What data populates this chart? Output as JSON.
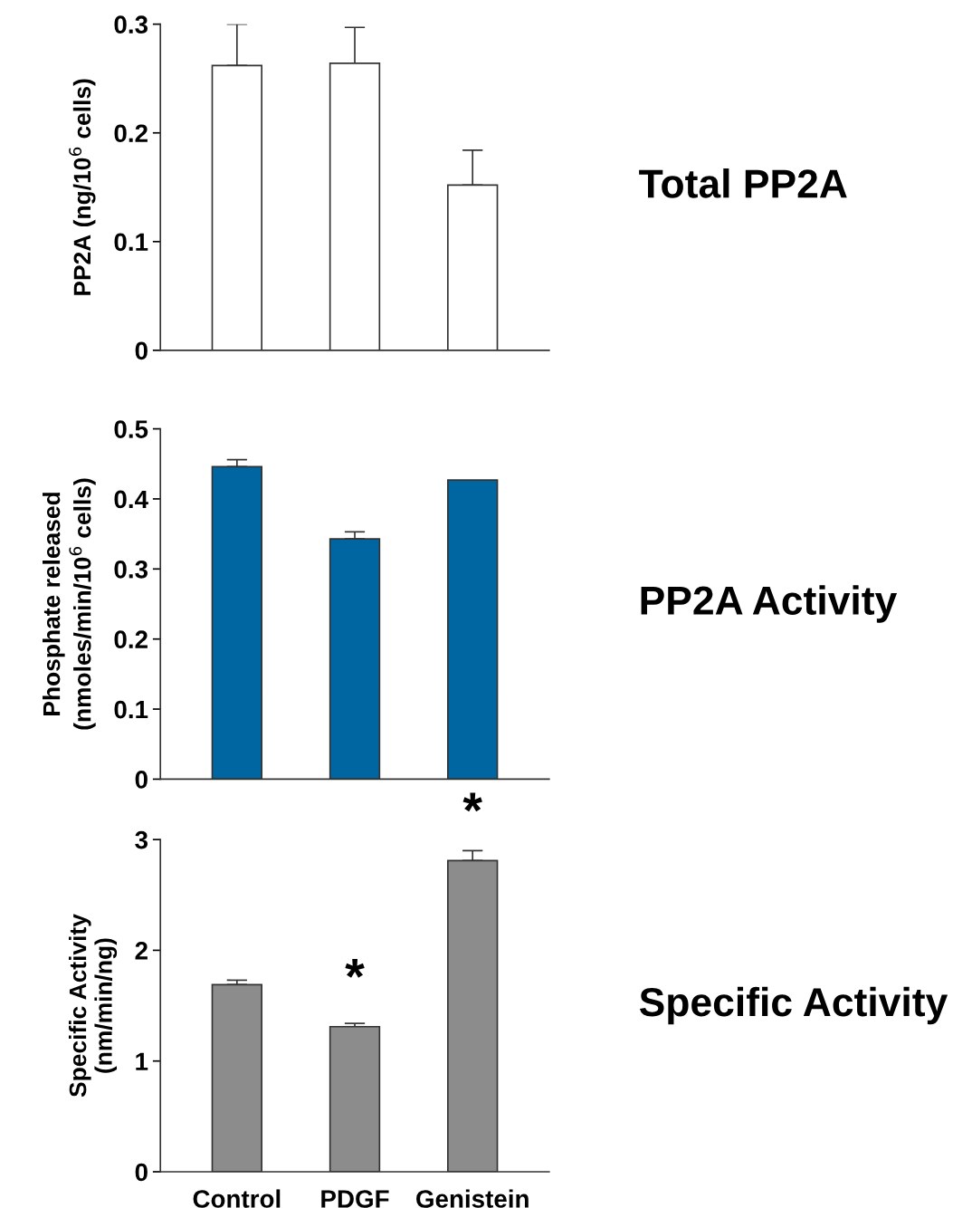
{
  "chart_data": [
    {
      "type": "bar",
      "ylabel": "PP2A (ng/10$^{6}$ cells)",
      "categories": [
        null,
        null,
        null
      ],
      "series": [
        {
          "color": "#ffffff",
          "values": [
            0.262,
            0.264,
            0.152
          ],
          "errors": [
            [
              0.262,
              0.3
            ],
            [
              0.264,
              0.297
            ],
            [
              0.152,
              0.184
            ]
          ]
        }
      ],
      "ylim": [
        0,
        0.3
      ],
      "yticks": [
        0,
        0.1,
        0.2,
        0.3
      ],
      "grid": false,
      "annotations": [
        "Total PP2A"
      ]
    },
    {
      "type": "bar",
      "ylabel": "Phosphate released\n(nmoles/min/10$^{6}$ cells)",
      "categories": [
        null,
        null,
        null
      ],
      "series": [
        {
          "color": "#0066a1",
          "values": [
            0.446,
            0.343,
            0.427
          ],
          "errors": [
            [
              0.446,
              0.456
            ],
            [
              0.343,
              0.353
            ],
            null
          ]
        }
      ],
      "ylim": [
        0,
        0.5
      ],
      "yticks": [
        0,
        0.1,
        0.2,
        0.3,
        0.4,
        0.5
      ],
      "grid": false,
      "annotations": [
        "PP2A Activity"
      ]
    },
    {
      "type": "bar",
      "ylabel": "Specific Activity\n(nm/min/ng)",
      "categories": [
        "Control",
        "PDGF",
        "Genistein"
      ],
      "series": [
        {
          "color": "#8c8c8c",
          "values": [
            1.69,
            1.31,
            2.81
          ],
          "errors": [
            [
              1.69,
              1.73
            ],
            [
              1.31,
              1.34
            ],
            [
              2.81,
              2.9
            ]
          ]
        }
      ],
      "ylim": [
        0,
        3
      ],
      "yticks": [
        0,
        1,
        2,
        3
      ],
      "grid": false,
      "annotations": [
        "Specific Activity",
        {
          "text": "*",
          "x": "PDGF",
          "y": 1.31
        },
        {
          "text": "*",
          "x": "Genistein",
          "y": 2.81
        }
      ]
    }
  ]
}
